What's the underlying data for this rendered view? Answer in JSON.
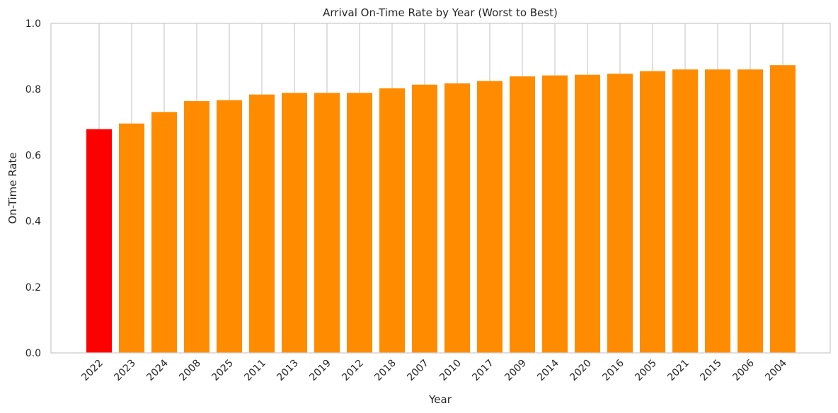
{
  "chart_data": {
    "type": "bar",
    "title": "Arrival On-Time Rate by Year (Worst to Best)",
    "xlabel": "Year",
    "ylabel": "On-Time Rate",
    "ylim": [
      0,
      1.0
    ],
    "yticks": [
      "0.0",
      "0.2",
      "0.4",
      "0.6",
      "0.8",
      "1.0"
    ],
    "ytick_values": [
      0,
      0.2,
      0.4,
      0.6,
      0.8,
      1.0
    ],
    "grid": "vertical",
    "categories": [
      "2022",
      "2023",
      "2024",
      "2008",
      "2025",
      "2011",
      "2013",
      "2019",
      "2012",
      "2018",
      "2007",
      "2010",
      "2017",
      "2009",
      "2014",
      "2020",
      "2016",
      "2005",
      "2021",
      "2015",
      "2006",
      "2004"
    ],
    "values": [
      0.679,
      0.696,
      0.731,
      0.764,
      0.767,
      0.784,
      0.789,
      0.789,
      0.789,
      0.803,
      0.814,
      0.818,
      0.825,
      0.839,
      0.842,
      0.844,
      0.847,
      0.855,
      0.86,
      0.86,
      0.86,
      0.873
    ],
    "colors": {
      "highlight": "#ff0000",
      "default": "#ff8c00",
      "grid": "#cccccc",
      "frame": "#cccccc",
      "text": "#262626"
    },
    "highlight_category": "2022"
  }
}
